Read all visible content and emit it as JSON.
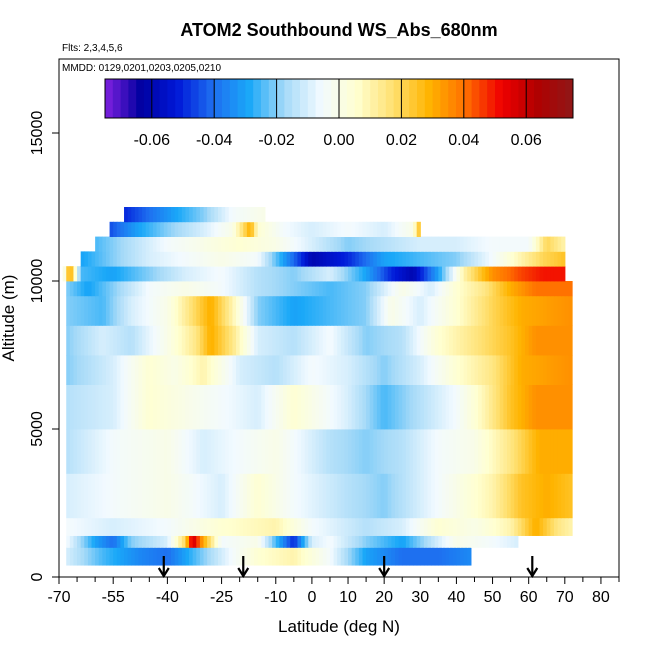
{
  "chart_data": {
    "type": "heatmap",
    "title": "ATOM2 Southbound WS_Abs_680nm",
    "subtitle_flights": "Flts: 2,3,4,5,6",
    "subtitle_dates": "MMDD: 0129,0201,0203,0205,0210",
    "xlabel": "Latitude (deg N)",
    "ylabel": "Altitude (m)",
    "xlim": [
      -70,
      85
    ],
    "ylim": [
      0,
      17500
    ],
    "x_ticks": [
      -70,
      -55,
      -40,
      -25,
      -10,
      0,
      10,
      20,
      30,
      40,
      50,
      60,
      70,
      80
    ],
    "x_tick_labels": [
      "-70",
      "-55",
      "-40",
      "-25",
      "-10",
      "0",
      "10",
      "20",
      "30",
      "40",
      "50",
      "60",
      "70",
      "80"
    ],
    "x_minor_ticks": [
      -65,
      -60,
      -50,
      -45,
      -35,
      -30,
      -20,
      -15,
      -5,
      5,
      15,
      25,
      35,
      45,
      55,
      65,
      75,
      85
    ],
    "y_ticks": [
      0,
      5000,
      10000,
      15000
    ],
    "y_tick_labels": [
      "0",
      "5000",
      "10000",
      "15000"
    ],
    "colorbar": {
      "range": [
        -0.075,
        0.075
      ],
      "ticks": [
        -0.06,
        -0.04,
        -0.02,
        0.0,
        0.02,
        0.04,
        0.06
      ],
      "tick_labels": [
        "-0.06",
        "-0.04",
        "-0.02",
        "0.00",
        "0.02",
        "0.04",
        "0.06"
      ],
      "colors": [
        "#8020e0",
        "#0000a0",
        "#0018d8",
        "#1e6ef0",
        "#1aa8f8",
        "#a6daf8",
        "#f2faff",
        "#ffffd0",
        "#ffe070",
        "#ffb400",
        "#ff7000",
        "#f00000",
        "#b00000",
        "#901818"
      ]
    },
    "flight_markers_lat": [
      -41,
      -19,
      20,
      61
    ],
    "grid": false,
    "legend": "colorbar top",
    "rows": [
      {
        "alt": [
          400,
          1000
        ],
        "lat": [
          -68,
          44
        ],
        "seg": [
          [
            -68,
            -0.01
          ],
          [
            -58,
            -0.025
          ],
          [
            -48,
            -0.035
          ],
          [
            -40,
            -0.04
          ],
          [
            -30,
            -0.02
          ],
          [
            -22,
            -0.005
          ],
          [
            -15,
            0.005
          ],
          [
            -5,
            0.01
          ],
          [
            5,
            -0.005
          ],
          [
            15,
            -0.03
          ],
          [
            25,
            -0.04
          ],
          [
            35,
            -0.04
          ],
          [
            44,
            -0.035
          ]
        ]
      },
      {
        "alt": [
          1000,
          1400
        ],
        "lat": [
          -68,
          57
        ],
        "seg": [
          [
            -68,
            -0.005
          ],
          [
            -60,
            -0.03
          ],
          [
            -55,
            -0.04
          ],
          [
            -50,
            -0.02
          ],
          [
            -40,
            -0.01
          ],
          [
            -35,
            0.02
          ],
          [
            -33,
            0.06
          ],
          [
            -30,
            0.03
          ],
          [
            -25,
            -0.005
          ],
          [
            -15,
            0.0
          ],
          [
            -5,
            -0.05
          ],
          [
            0,
            -0.01
          ],
          [
            5,
            -0.005
          ],
          [
            15,
            -0.02
          ],
          [
            25,
            -0.03
          ],
          [
            40,
            0.0
          ],
          [
            50,
            -0.005
          ],
          [
            57,
            -0.01
          ]
        ]
      },
      {
        "alt": [
          1400,
          2000
        ],
        "lat": [
          -68,
          72
        ],
        "seg": [
          [
            -68,
            -0.005
          ],
          [
            -55,
            -0.01
          ],
          [
            -40,
            -0.005
          ],
          [
            -25,
            0.005
          ],
          [
            -10,
            0.01
          ],
          [
            0,
            -0.005
          ],
          [
            15,
            -0.015
          ],
          [
            25,
            -0.01
          ],
          [
            35,
            0.005
          ],
          [
            45,
            0.0
          ],
          [
            55,
            0.01
          ],
          [
            62,
            0.03
          ],
          [
            68,
            0.015
          ],
          [
            72,
            0.01
          ]
        ]
      },
      {
        "alt": [
          2000,
          3500
        ],
        "lat": [
          -68,
          72
        ],
        "seg": [
          [
            -68,
            -0.01
          ],
          [
            -55,
            -0.005
          ],
          [
            -40,
            0.0
          ],
          [
            -25,
            -0.01
          ],
          [
            -15,
            0.005
          ],
          [
            -5,
            -0.005
          ],
          [
            10,
            -0.015
          ],
          [
            20,
            -0.02
          ],
          [
            30,
            -0.01
          ],
          [
            40,
            0.0
          ],
          [
            50,
            0.01
          ],
          [
            58,
            0.025
          ],
          [
            65,
            0.03
          ],
          [
            72,
            0.025
          ]
        ]
      },
      {
        "alt": [
          3500,
          5000
        ],
        "lat": [
          -68,
          72
        ],
        "seg": [
          [
            -68,
            -0.015
          ],
          [
            -55,
            -0.005
          ],
          [
            -40,
            0.0
          ],
          [
            -30,
            -0.01
          ],
          [
            -20,
            -0.005
          ],
          [
            -10,
            0.0
          ],
          [
            5,
            -0.015
          ],
          [
            15,
            -0.02
          ],
          [
            25,
            -0.015
          ],
          [
            35,
            -0.005
          ],
          [
            45,
            0.0
          ],
          [
            55,
            0.015
          ],
          [
            63,
            0.03
          ],
          [
            72,
            0.03
          ]
        ]
      },
      {
        "alt": [
          5000,
          6500
        ],
        "lat": [
          -68,
          72
        ],
        "seg": [
          [
            -68,
            -0.015
          ],
          [
            -55,
            -0.01
          ],
          [
            -45,
            0.005
          ],
          [
            -35,
            0.0
          ],
          [
            -25,
            -0.005
          ],
          [
            -15,
            -0.01
          ],
          [
            -5,
            0.005
          ],
          [
            10,
            -0.01
          ],
          [
            20,
            -0.025
          ],
          [
            30,
            -0.015
          ],
          [
            40,
            -0.005
          ],
          [
            48,
            0.01
          ],
          [
            55,
            0.025
          ],
          [
            62,
            0.035
          ],
          [
            72,
            0.035
          ]
        ]
      },
      {
        "alt": [
          6500,
          7500
        ],
        "lat": [
          -68,
          72
        ],
        "seg": [
          [
            -68,
            -0.02
          ],
          [
            -55,
            -0.01
          ],
          [
            -45,
            0.005
          ],
          [
            -38,
            0.0
          ],
          [
            -30,
            0.01
          ],
          [
            -20,
            -0.01
          ],
          [
            -10,
            -0.015
          ],
          [
            0,
            -0.005
          ],
          [
            10,
            -0.01
          ],
          [
            20,
            -0.02
          ],
          [
            30,
            -0.01
          ],
          [
            40,
            0.005
          ],
          [
            50,
            0.015
          ],
          [
            58,
            0.03
          ],
          [
            72,
            0.035
          ]
        ]
      },
      {
        "alt": [
          7500,
          8500
        ],
        "lat": [
          -68,
          72
        ],
        "seg": [
          [
            -68,
            -0.02
          ],
          [
            -58,
            -0.01
          ],
          [
            -50,
            -0.015
          ],
          [
            -40,
            0.0
          ],
          [
            -32,
            0.015
          ],
          [
            -28,
            0.03
          ],
          [
            -22,
            0.015
          ],
          [
            -15,
            -0.01
          ],
          [
            -5,
            -0.015
          ],
          [
            5,
            -0.005
          ],
          [
            15,
            -0.02
          ],
          [
            25,
            -0.015
          ],
          [
            35,
            0.005
          ],
          [
            45,
            0.015
          ],
          [
            55,
            0.025
          ],
          [
            62,
            0.035
          ],
          [
            72,
            0.035
          ]
        ]
      },
      {
        "alt": [
          8500,
          9500
        ],
        "lat": [
          -68,
          72
        ],
        "seg": [
          [
            -68,
            -0.02
          ],
          [
            -58,
            -0.025
          ],
          [
            -50,
            -0.01
          ],
          [
            -40,
            0.0
          ],
          [
            -32,
            0.02
          ],
          [
            -28,
            0.03
          ],
          [
            -22,
            0.01
          ],
          [
            -15,
            -0.02
          ],
          [
            -5,
            -0.03
          ],
          [
            5,
            -0.025
          ],
          [
            15,
            -0.02
          ],
          [
            22,
            0.0
          ],
          [
            30,
            -0.01
          ],
          [
            40,
            0.005
          ],
          [
            50,
            0.02
          ],
          [
            58,
            0.03
          ],
          [
            72,
            0.035
          ]
        ]
      },
      {
        "alt": [
          9500,
          10000
        ],
        "lat": [
          -68,
          72
        ],
        "seg": [
          [
            -68,
            -0.02
          ],
          [
            -62,
            -0.03
          ],
          [
            -55,
            -0.02
          ],
          [
            -45,
            -0.005
          ],
          [
            -35,
            0.0
          ],
          [
            -25,
            -0.005
          ],
          [
            -15,
            -0.015
          ],
          [
            -5,
            -0.02
          ],
          [
            5,
            -0.025
          ],
          [
            15,
            -0.02
          ],
          [
            25,
            0.0
          ],
          [
            33,
            -0.01
          ],
          [
            40,
            0.005
          ],
          [
            48,
            0.015
          ],
          [
            55,
            0.03
          ],
          [
            62,
            0.04
          ],
          [
            72,
            0.04
          ]
        ]
      },
      {
        "alt": [
          10000,
          10500
        ],
        "lat": [
          -69,
          70
        ],
        "seg": [
          [
            -69,
            -0.01
          ],
          [
            -67,
            0.035
          ],
          [
            -64,
            -0.025
          ],
          [
            -55,
            -0.03
          ],
          [
            -45,
            -0.02
          ],
          [
            -35,
            -0.01
          ],
          [
            -25,
            -0.005
          ],
          [
            -15,
            -0.015
          ],
          [
            -5,
            -0.02
          ],
          [
            5,
            -0.01
          ],
          [
            15,
            -0.03
          ],
          [
            22,
            -0.05
          ],
          [
            28,
            -0.06
          ],
          [
            35,
            -0.03
          ],
          [
            42,
            0.01
          ],
          [
            50,
            0.035
          ],
          [
            58,
            0.045
          ],
          [
            64,
            0.05
          ],
          [
            70,
            0.05
          ]
        ]
      },
      {
        "alt": [
          10500,
          11000
        ],
        "lat": [
          -64,
          70
        ],
        "seg": [
          [
            -64,
            -0.03
          ],
          [
            -55,
            -0.02
          ],
          [
            -45,
            -0.01
          ],
          [
            -35,
            -0.005
          ],
          [
            -25,
            0.0
          ],
          [
            -15,
            -0.005
          ],
          [
            -8,
            -0.03
          ],
          [
            0,
            -0.06
          ],
          [
            10,
            -0.05
          ],
          [
            20,
            -0.03
          ],
          [
            30,
            -0.025
          ],
          [
            40,
            -0.02
          ],
          [
            50,
            -0.005
          ],
          [
            58,
            0.01
          ],
          [
            64,
            0.02
          ],
          [
            70,
            0.025
          ]
        ]
      },
      {
        "alt": [
          11000,
          11500
        ],
        "lat": [
          -60,
          70
        ],
        "seg": [
          [
            -60,
            -0.025
          ],
          [
            -50,
            -0.015
          ],
          [
            -40,
            -0.005
          ],
          [
            -30,
            0.0
          ],
          [
            -20,
            0.005
          ],
          [
            -10,
            0.0
          ],
          [
            0,
            -0.01
          ],
          [
            10,
            -0.02
          ],
          [
            20,
            -0.015
          ],
          [
            30,
            -0.01
          ],
          [
            40,
            -0.01
          ],
          [
            50,
            -0.005
          ],
          [
            60,
            -0.005
          ],
          [
            65,
            0.02
          ],
          [
            70,
            0.01
          ]
        ]
      },
      {
        "alt": [
          11500,
          12000
        ],
        "lat": [
          -56,
          30
        ],
        "seg": [
          [
            -56,
            -0.045
          ],
          [
            -48,
            -0.03
          ],
          [
            -40,
            -0.02
          ],
          [
            -30,
            -0.01
          ],
          [
            -22,
            0.0
          ],
          [
            -17,
            0.03
          ],
          [
            -15,
            0.005
          ],
          [
            -8,
            -0.005
          ],
          [
            0,
            -0.01
          ],
          [
            10,
            -0.005
          ],
          [
            20,
            -0.01
          ],
          [
            28,
            0.0
          ],
          [
            30,
            0.03
          ]
        ]
      },
      {
        "alt": [
          12000,
          12500
        ],
        "lat": [
          -52,
          -13
        ],
        "seg": [
          [
            -52,
            -0.05
          ],
          [
            -45,
            -0.04
          ],
          [
            -38,
            -0.03
          ],
          [
            -30,
            -0.02
          ],
          [
            -22,
            -0.005
          ],
          [
            -13,
            0.0
          ]
        ]
      }
    ]
  }
}
